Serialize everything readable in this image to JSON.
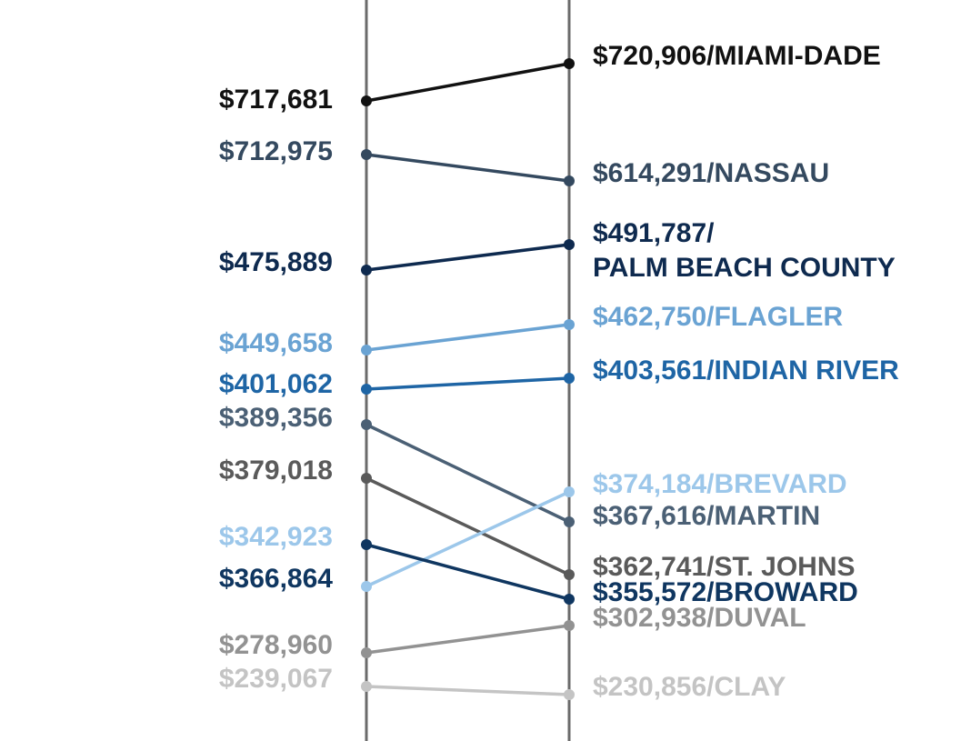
{
  "chart_data": {
    "type": "line",
    "title": "",
    "xlabel": "",
    "ylabel": "",
    "grid": false,
    "legend": "none",
    "x": [
      "left",
      "right"
    ],
    "series": [
      {
        "name": "MIAMI-DADE",
        "left_label": "$717,681",
        "right_label_lines": [
          "$720,906/MIAMI-DADE"
        ],
        "values": [
          717681,
          720906
        ],
        "color": "#111111"
      },
      {
        "name": "NASSAU",
        "left_label": "$712,975",
        "right_label_lines": [
          "$614,291/NASSAU"
        ],
        "values": [
          712975,
          614291
        ],
        "color": "#34495f"
      },
      {
        "name": "PALM BEACH COUNTY",
        "left_label": "$475,889",
        "right_label_lines": [
          "$491,787/",
          "PALM BEACH COUNTY"
        ],
        "values": [
          475889,
          491787
        ],
        "color": "#0e2a4f"
      },
      {
        "name": "FLAGLER",
        "left_label": "$449,658",
        "right_label_lines": [
          "$462,750/FLAGLER"
        ],
        "values": [
          449658,
          462750
        ],
        "color": "#6aa3d3"
      },
      {
        "name": "INDIAN RIVER",
        "left_label": "$401,062",
        "right_label_lines": [
          "$403,561/INDIAN RIVER"
        ],
        "values": [
          401062,
          403561
        ],
        "color": "#1e65a5"
      },
      {
        "name": "MARTIN",
        "left_label": "$389,356",
        "right_label_lines": [
          "$367,616/MARTIN"
        ],
        "values": [
          389356,
          367616
        ],
        "color": "#4b6075"
      },
      {
        "name": "ST. JOHNS",
        "left_label": "$379,018",
        "right_label_lines": [
          "$362,741/ST. JOHNS"
        ],
        "values": [
          379018,
          362741
        ],
        "color": "#5a5a5a"
      },
      {
        "name": "BREVARD",
        "left_label": "$342,923",
        "right_label_lines": [
          "$374,184/BREVARD"
        ],
        "values": [
          342923,
          374184
        ],
        "color": "#9cc7ea"
      },
      {
        "name": "BROWARD",
        "left_label": "$366,864",
        "right_label_lines": [
          "$355,572/BROWARD"
        ],
        "values": [
          366864,
          355572
        ],
        "color": "#0f3660"
      },
      {
        "name": "DUVAL",
        "left_label": "$278,960",
        "right_label_lines": [
          "$302,938/DUVAL"
        ],
        "values": [
          278960,
          302938
        ],
        "color": "#929292"
      },
      {
        "name": "CLAY",
        "left_label": "$239,067",
        "right_label_lines": [
          "$230,856/CLAY"
        ],
        "values": [
          239067,
          230856
        ],
        "color": "#c4c4c4"
      }
    ]
  }
}
